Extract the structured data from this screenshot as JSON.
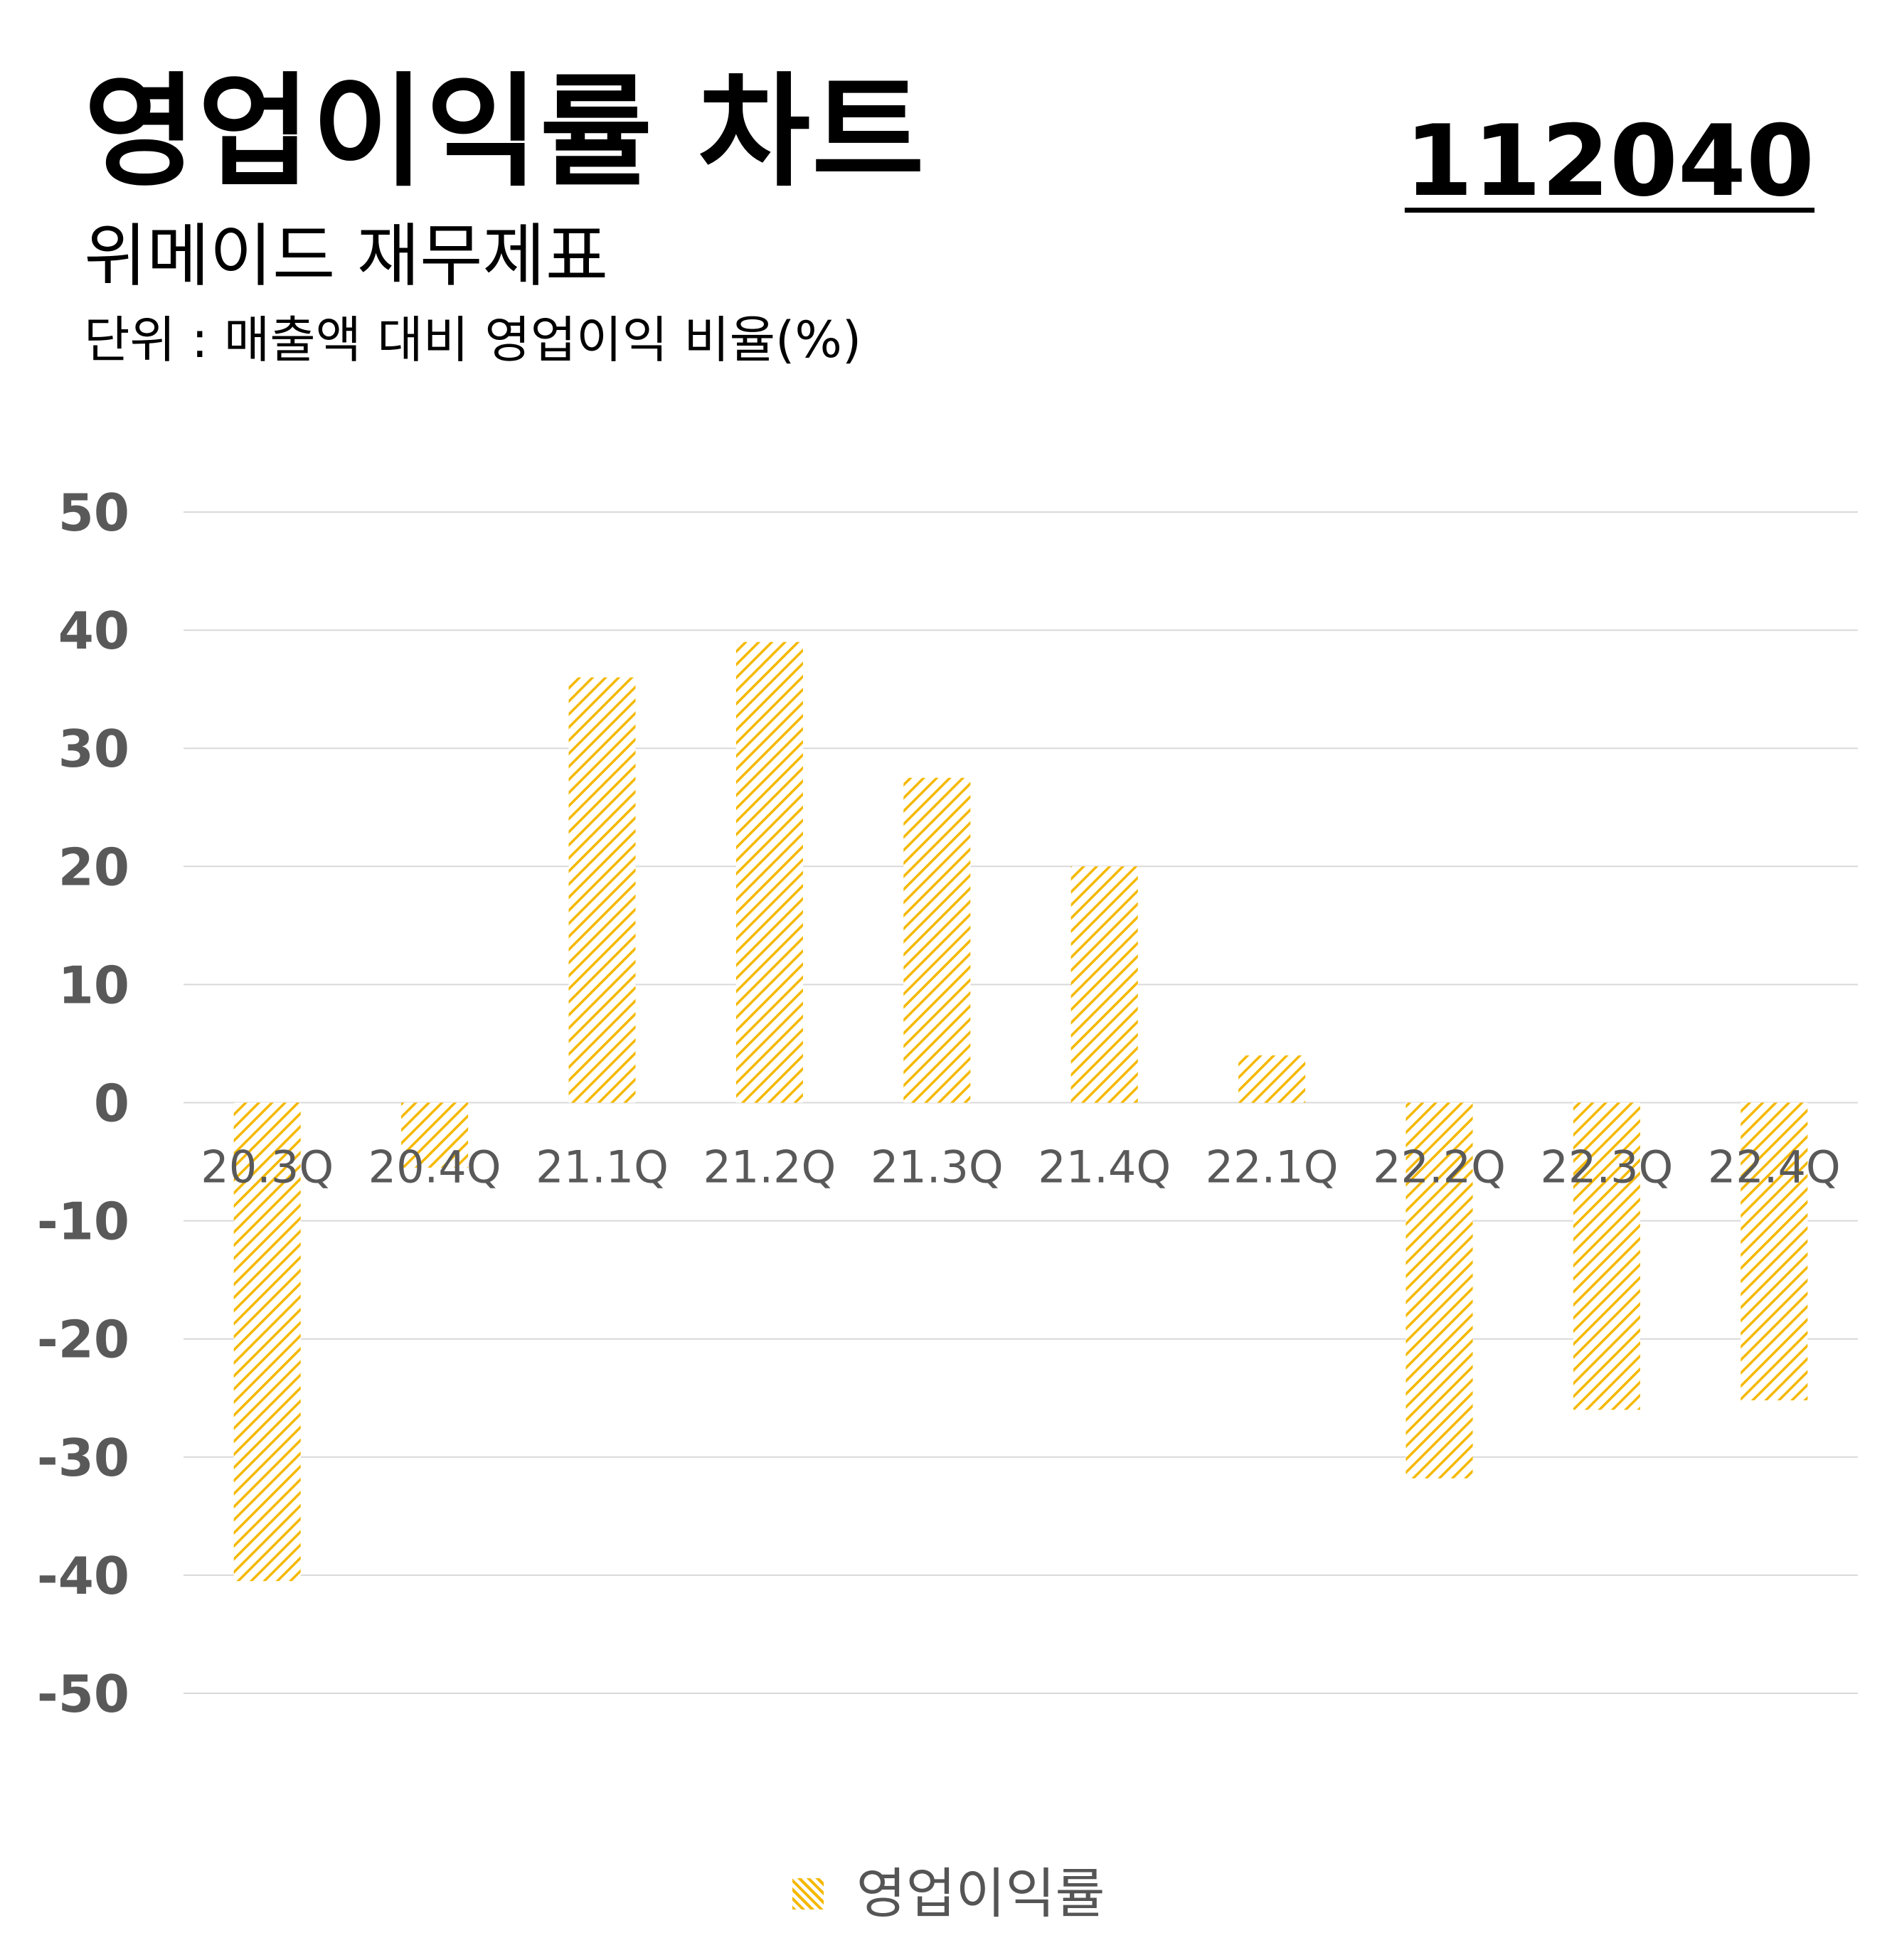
{
  "header": {
    "title": "영업이익률 차트",
    "code": "112040",
    "subtitle": "위메이드 재무제표",
    "unit": "단위 : 매출액 대비 영업이익 비율(%)"
  },
  "colors": {
    "bar": "#f5b800",
    "grid": "#d9d9d9",
    "tick_text": "#595959"
  },
  "chart_data": {
    "type": "bar",
    "title": "영업이익률 차트",
    "categories": [
      "20.3Q",
      "20.4Q",
      "21.1Q",
      "21.2Q",
      "21.3Q",
      "21.4Q",
      "22.1Q",
      "22.2Q",
      "22.3Q",
      "22.4Q"
    ],
    "series": [
      {
        "name": "영업이익률",
        "values": [
          -40.5,
          -5.5,
          36,
          39,
          27.5,
          20,
          4,
          -31.8,
          -26,
          -25.2
        ]
      }
    ],
    "ylim": [
      -50,
      50
    ],
    "yticks": [
      50,
      40,
      30,
      20,
      10,
      0,
      -10,
      -20,
      -30,
      -40,
      -50
    ],
    "grid": true,
    "legend_position": "bottom-center",
    "bar_pattern": "diagonal-hatch"
  }
}
